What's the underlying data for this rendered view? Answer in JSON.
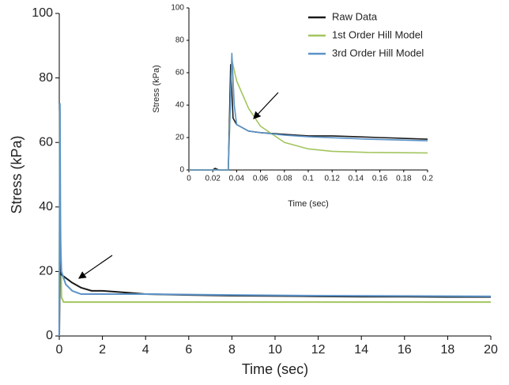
{
  "chart_data": [
    {
      "type": "line",
      "xlabel": "Time (sec)",
      "ylabel": "Stress (kPa)",
      "xlim": [
        0,
        20
      ],
      "xticks": [
        0,
        2,
        4,
        6,
        8,
        10,
        12,
        14,
        16,
        18,
        20
      ],
      "ylim": [
        0,
        100
      ],
      "yticks": [
        0,
        20,
        40,
        60,
        80,
        100
      ],
      "series": [
        {
          "color": "#a3c55f",
          "x": [
            0,
            0.03,
            0.05,
            0.1,
            0.2,
            0.5,
            20
          ],
          "values": [
            0,
            70,
            40,
            12,
            10.5,
            10.5,
            10.5
          ]
        },
        {
          "color": "#1a1a1a",
          "x": [
            0,
            0.03,
            0.05,
            0.1,
            0.3,
            0.6,
            1,
            1.5,
            2,
            3,
            4,
            6,
            8,
            10,
            12,
            14,
            16,
            18,
            20
          ],
          "values": [
            0,
            25,
            22,
            19,
            18,
            16.5,
            15,
            14,
            14,
            13.5,
            13,
            12.7,
            12.5,
            12.4,
            12.3,
            12.2,
            12.2,
            12.1,
            12.1
          ]
        },
        {
          "color": "#5b93c8",
          "x": [
            0,
            0.03,
            0.05,
            0.1,
            0.3,
            0.6,
            1,
            2,
            4,
            8,
            12,
            16,
            20
          ],
          "values": [
            0,
            72,
            30,
            20,
            16,
            14,
            13,
            13,
            13,
            12.7,
            12.5,
            12.4,
            12.3
          ]
        }
      ]
    },
    {
      "type": "line",
      "xlabel": "Time (sec)",
      "ylabel": "Stress (kPa)",
      "legend": "upper right",
      "xlim": [
        0,
        0.2
      ],
      "xticks": [
        0,
        0.02,
        0.04,
        0.06,
        0.08,
        0.1,
        0.12,
        0.14,
        0.16,
        0.18,
        0.2
      ],
      "ylim": [
        0,
        100
      ],
      "yticks": [
        0,
        20,
        40,
        60,
        80,
        100
      ],
      "series": [
        {
          "name": "Raw Data",
          "color": "#1a1a1a",
          "x": [
            0,
            0.02,
            0.022,
            0.025,
            0.033,
            0.035,
            0.037,
            0.04,
            0.045,
            0.05,
            0.06,
            0.08,
            0.1,
            0.12,
            0.14,
            0.16,
            0.18,
            0.2
          ],
          "values": [
            0,
            0,
            1,
            0,
            0,
            65,
            32,
            28,
            26,
            24,
            23,
            22,
            21,
            21,
            20.5,
            20,
            19.5,
            19
          ]
        },
        {
          "name": "1st Order Hill Model",
          "color": "#a3c55f",
          "x": [
            0,
            0.033,
            0.036,
            0.04,
            0.05,
            0.06,
            0.08,
            0.1,
            0.12,
            0.15,
            0.2
          ],
          "values": [
            0,
            0,
            68,
            55,
            38,
            27,
            17,
            13,
            11.5,
            10.8,
            10.5
          ]
        },
        {
          "name": "3rd Order Hill Model",
          "color": "#5b93c8",
          "x": [
            0,
            0.033,
            0.036,
            0.038,
            0.04,
            0.05,
            0.06,
            0.08,
            0.1,
            0.15,
            0.2
          ],
          "values": [
            0,
            0,
            72,
            40,
            28,
            24,
            23,
            21.5,
            20.5,
            19,
            18
          ]
        }
      ]
    }
  ]
}
